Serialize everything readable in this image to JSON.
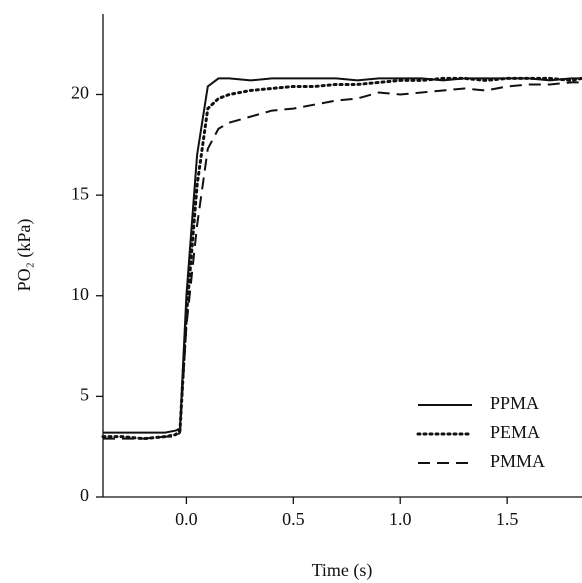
{
  "chart_data": {
    "type": "line",
    "x_label": "Time (s)",
    "y_label": "PO₂ (kPa)",
    "x": [
      -0.39,
      -0.3,
      -0.2,
      -0.1,
      -0.05,
      -0.03,
      0,
      0.05,
      0.1,
      0.15,
      0.2,
      0.3,
      0.4,
      0.5,
      0.6,
      0.7,
      0.8,
      0.9,
      1.0,
      1.1,
      1.2,
      1.3,
      1.4,
      1.5,
      1.6,
      1.7,
      1.8,
      1.85
    ],
    "series": [
      {
        "name": "PPMA",
        "color": "#111111",
        "dash": "solid",
        "values": [
          3.2,
          3.2,
          3.2,
          3.2,
          3.3,
          3.4,
          10,
          17,
          20.4,
          20.8,
          20.8,
          20.7,
          20.8,
          20.8,
          20.8,
          20.8,
          20.7,
          20.8,
          20.8,
          20.8,
          20.7,
          20.8,
          20.8,
          20.8,
          20.8,
          20.7,
          20.8,
          20.8
        ]
      },
      {
        "name": "PEMA",
        "color": "#111111",
        "dash": "dotted",
        "values": [
          3.0,
          3.0,
          2.9,
          3.0,
          3.1,
          3.3,
          9,
          15.5,
          19.3,
          19.8,
          20.0,
          20.2,
          20.3,
          20.4,
          20.4,
          20.5,
          20.5,
          20.6,
          20.7,
          20.7,
          20.8,
          20.8,
          20.7,
          20.8,
          20.8,
          20.8,
          20.7,
          20.8
        ]
      },
      {
        "name": "PMMA",
        "color": "#111111",
        "dash": "dashed",
        "values": [
          2.9,
          2.9,
          2.9,
          3.0,
          3.0,
          3.2,
          8.5,
          13.5,
          17.3,
          18.3,
          18.6,
          18.9,
          19.2,
          19.3,
          19.5,
          19.7,
          19.8,
          20.1,
          20.0,
          20.1,
          20.2,
          20.3,
          20.2,
          20.4,
          20.5,
          20.5,
          20.6,
          20.6
        ]
      }
    ],
    "xlim": [
      -0.39,
      1.85
    ],
    "ylim": [
      0,
      24
    ],
    "xticks": [
      {
        "value": 0,
        "label": "0.0"
      },
      0.5,
      {
        "value": 1,
        "label": "1.0"
      },
      1.5
    ],
    "yticks": [
      0,
      5,
      10,
      15,
      20
    ],
    "grid": false,
    "legend": "lower-right"
  }
}
